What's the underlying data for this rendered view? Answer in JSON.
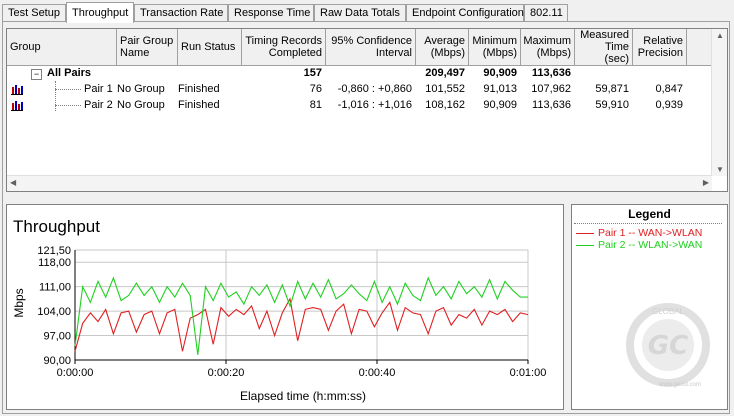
{
  "tabs": [
    "Test Setup",
    "Throughput",
    "Transaction Rate",
    "Response Time",
    "Raw Data Totals",
    "Endpoint Configuration",
    "802.11"
  ],
  "active_tab": "Throughput",
  "table": {
    "headers": {
      "group": "Group",
      "pair_group_name": "Pair Group Name",
      "run_status": "Run Status",
      "timing_records": "Timing Records Completed",
      "confidence": "95% Confidence Interval",
      "average": "Average (Mbps)",
      "minimum": "Minimum (Mbps)",
      "maximum": "Maximum (Mbps)",
      "measured_time": "Measured Time (sec)",
      "relative_precision": "Relative Precision"
    },
    "all_pairs": {
      "toggle": "−",
      "label": "All Pairs",
      "timing_records": "157",
      "average": "209,497",
      "minimum": "90,909",
      "maximum": "113,636"
    },
    "rows": [
      {
        "group": "Pair 1",
        "pair_group_name": "No Group",
        "run_status": "Finished",
        "timing_records": "76",
        "confidence": "-0,860 : +0,860",
        "average": "101,552",
        "minimum": "91,013",
        "maximum": "107,962",
        "measured_time": "59,871",
        "relative_precision": "0,847"
      },
      {
        "group": "Pair 2",
        "pair_group_name": "No Group",
        "run_status": "Finished",
        "timing_records": "81",
        "confidence": "-1,016 : +1,016",
        "average": "108,162",
        "minimum": "90,909",
        "maximum": "113,636",
        "measured_time": "59,910",
        "relative_precision": "0,939"
      }
    ]
  },
  "legend": {
    "title": "Legend",
    "items": [
      {
        "label": "Pair 1 -- WAN->WLAN",
        "color": "#e02020"
      },
      {
        "label": "Pair 2 -- WLAN->WAN",
        "color": "#20d020"
      }
    ]
  },
  "watermark": {
    "text1": "GLOBAL",
    "text2": "www.gecid.com"
  },
  "chart_data": {
    "type": "line",
    "title": "Throughput",
    "xlabel": "Elapsed time (h:mm:ss)",
    "ylabel": "Mbps",
    "ylim": [
      90.0,
      121.5
    ],
    "xlim": [
      0,
      60
    ],
    "yticks": [
      "90,00",
      "97,00",
      "104,00",
      "111,00",
      "118,00",
      "121,50"
    ],
    "ytick_values": [
      90.0,
      97.0,
      104.0,
      111.0,
      118.0,
      121.5
    ],
    "xticks": [
      "0:00:00",
      "0:00:20",
      "0:00:40",
      "0:01:00"
    ],
    "xtick_values": [
      0,
      20,
      40,
      60
    ],
    "series": [
      {
        "name": "Pair 1 -- WAN->WLAN",
        "color": "#e02020",
        "values": [
          92.5,
          100.5,
          103.5,
          101,
          104.5,
          97.5,
          103.5,
          104,
          98,
          103,
          104,
          97.5,
          103.5,
          104.5,
          92.5,
          102,
          103,
          104.5,
          94.5,
          105,
          102.5,
          104.5,
          103,
          105.5,
          99,
          104,
          97,
          103.5,
          107.5,
          95.5,
          104.5,
          105,
          104.5,
          98.5,
          104,
          106,
          97.5,
          104.5,
          104,
          99.5,
          103.5,
          106.5,
          98.5,
          105,
          103.5,
          103,
          97.5,
          104,
          105,
          100,
          103,
          102,
          104.5,
          100,
          104,
          103,
          104.5,
          101,
          103.5,
          103
        ]
      },
      {
        "name": "Pair 2 -- WLAN->WAN",
        "color": "#20d020",
        "values": [
          94,
          111,
          106.5,
          112.5,
          108,
          113.5,
          107,
          108.5,
          112,
          108.5,
          111,
          106.5,
          111,
          108,
          112,
          108.5,
          91.5,
          111,
          107,
          112,
          108,
          109.5,
          106,
          111,
          108.5,
          111.5,
          106.5,
          111.5,
          105.5,
          112.5,
          107.5,
          112,
          108,
          113,
          107.5,
          109,
          111.5,
          109,
          107,
          112.5,
          106.5,
          111,
          106,
          112,
          108.5,
          107,
          113.5,
          108.5,
          111,
          107.5,
          112.5,
          109,
          111,
          108,
          113,
          107.5,
          112.5,
          110,
          108,
          108
        ]
      }
    ]
  }
}
